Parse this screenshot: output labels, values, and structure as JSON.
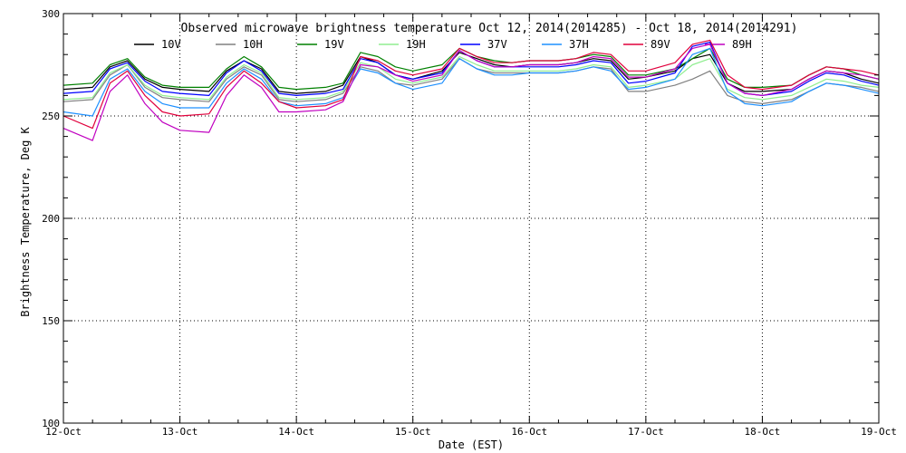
{
  "chart_data": {
    "type": "line",
    "title": "Observed microwave brightness temperature Oct 12, 2014(2014285) - Oct 18, 2014(2014291)",
    "xlabel": "Date (EST)",
    "ylabel": "Brightness Temperature, Deg K",
    "xlim": [
      0,
      7
    ],
    "ylim": [
      100,
      300
    ],
    "x_ticks": [
      0,
      1,
      2,
      3,
      4,
      5,
      6,
      7
    ],
    "x_tick_labels": [
      "12-Oct",
      "13-Oct",
      "14-Oct",
      "15-Oct",
      "16-Oct",
      "17-Oct",
      "18-Oct",
      "19-Oct"
    ],
    "y_ticks": [
      100,
      150,
      200,
      250,
      300
    ],
    "y_tick_labels": [
      "100",
      "150",
      "200",
      "250",
      "300"
    ],
    "grid": true,
    "legend_position": "top",
    "series": [
      {
        "name": "10V",
        "color": "#000000",
        "x": [
          0,
          0.25,
          0.4,
          0.55,
          0.7,
          0.85,
          1,
          1.25,
          1.4,
          1.55,
          1.7,
          1.85,
          2,
          2.25,
          2.4,
          2.55,
          2.7,
          2.85,
          3,
          3.25,
          3.4,
          3.55,
          3.7,
          3.85,
          4,
          4.25,
          4.4,
          4.55,
          4.7,
          4.85,
          5,
          5.25,
          5.4,
          5.55,
          5.7,
          5.85,
          6,
          6.25,
          6.4,
          6.55,
          6.7,
          6.85,
          7
        ],
        "values": [
          263,
          264,
          274,
          277,
          268,
          264,
          263,
          262,
          272,
          277,
          273,
          262,
          261,
          262,
          265,
          279,
          276,
          270,
          268,
          272,
          281,
          278,
          275,
          274,
          275,
          275,
          276,
          278,
          277,
          268,
          269,
          272,
          278,
          280,
          266,
          262,
          262,
          263,
          268,
          272,
          271,
          268,
          266
        ]
      },
      {
        "name": "10H",
        "color": "#808080",
        "x": [
          0,
          0.25,
          0.4,
          0.55,
          0.7,
          0.85,
          1,
          1.25,
          1.4,
          1.55,
          1.7,
          1.85,
          2,
          2.25,
          2.4,
          2.55,
          2.7,
          2.85,
          3,
          3.25,
          3.4,
          3.55,
          3.7,
          3.85,
          4,
          4.25,
          4.4,
          4.55,
          4.7,
          4.85,
          5,
          5.25,
          5.4,
          5.55,
          5.7,
          5.85,
          6,
          6.25,
          6.4,
          6.55,
          6.7,
          6.85,
          7
        ],
        "values": [
          257,
          258,
          270,
          275,
          264,
          259,
          258,
          257,
          268,
          274,
          270,
          258,
          257,
          258,
          261,
          274,
          272,
          266,
          265,
          268,
          278,
          273,
          271,
          271,
          271,
          271,
          272,
          274,
          273,
          262,
          262,
          265,
          268,
          272,
          260,
          257,
          256,
          258,
          262,
          266,
          265,
          264,
          262
        ]
      },
      {
        "name": "19V",
        "color": "#008000",
        "x": [
          0,
          0.25,
          0.4,
          0.55,
          0.7,
          0.85,
          1,
          1.25,
          1.4,
          1.55,
          1.7,
          1.85,
          2,
          2.25,
          2.4,
          2.55,
          2.7,
          2.85,
          3,
          3.25,
          3.4,
          3.55,
          3.7,
          3.85,
          4,
          4.25,
          4.4,
          4.55,
          4.7,
          4.85,
          5,
          5.25,
          5.4,
          5.55,
          5.7,
          5.85,
          6,
          6.25,
          6.4,
          6.55,
          6.7,
          6.85,
          7
        ],
        "values": [
          265,
          266,
          275,
          278,
          269,
          265,
          264,
          264,
          273,
          279,
          274,
          264,
          263,
          264,
          266,
          281,
          279,
          274,
          272,
          275,
          283,
          279,
          277,
          276,
          277,
          277,
          278,
          280,
          279,
          270,
          270,
          273,
          278,
          283,
          268,
          264,
          264,
          265,
          270,
          274,
          273,
          270,
          268
        ]
      },
      {
        "name": "19H",
        "color": "#90ee90",
        "x": [
          0,
          0.25,
          0.4,
          0.55,
          0.7,
          0.85,
          1,
          1.25,
          1.4,
          1.55,
          1.7,
          1.85,
          2,
          2.25,
          2.4,
          2.55,
          2.7,
          2.85,
          3,
          3.25,
          3.4,
          3.55,
          3.7,
          3.85,
          4,
          4.25,
          4.4,
          4.55,
          4.7,
          4.85,
          5,
          5.25,
          5.4,
          5.55,
          5.7,
          5.85,
          6,
          6.25,
          6.4,
          6.55,
          6.7,
          6.85,
          7
        ],
        "values": [
          258,
          259,
          271,
          275,
          265,
          260,
          259,
          258,
          269,
          275,
          271,
          259,
          258,
          259,
          262,
          276,
          274,
          268,
          266,
          269,
          279,
          275,
          272,
          272,
          272,
          272,
          273,
          275,
          274,
          264,
          265,
          268,
          275,
          278,
          263,
          259,
          258,
          260,
          264,
          268,
          267,
          265,
          264
        ]
      },
      {
        "name": "37V",
        "color": "#0000ff",
        "x": [
          0,
          0.25,
          0.4,
          0.55,
          0.7,
          0.85,
          1,
          1.25,
          1.4,
          1.55,
          1.7,
          1.85,
          2,
          2.25,
          2.4,
          2.55,
          2.7,
          2.85,
          3,
          3.25,
          3.4,
          3.55,
          3.7,
          3.85,
          4,
          4.25,
          4.4,
          4.55,
          4.7,
          4.85,
          5,
          5.25,
          5.4,
          5.55,
          5.7,
          5.85,
          6,
          6.25,
          6.4,
          6.55,
          6.7,
          6.85,
          7
        ],
        "values": [
          261,
          262,
          273,
          276,
          267,
          262,
          261,
          260,
          271,
          277,
          272,
          261,
          260,
          261,
          263,
          278,
          276,
          270,
          268,
          271,
          282,
          277,
          274,
          274,
          274,
          274,
          275,
          277,
          276,
          266,
          267,
          271,
          284,
          286,
          266,
          261,
          260,
          262,
          267,
          271,
          270,
          267,
          265
        ]
      },
      {
        "name": "37H",
        "color": "#1e90ff",
        "x": [
          0,
          0.25,
          0.4,
          0.55,
          0.7,
          0.85,
          1,
          1.25,
          1.4,
          1.55,
          1.7,
          1.85,
          2,
          2.25,
          2.4,
          2.55,
          2.7,
          2.85,
          3,
          3.25,
          3.4,
          3.55,
          3.7,
          3.85,
          4,
          4.25,
          4.4,
          4.55,
          4.7,
          4.85,
          5,
          5.25,
          5.4,
          5.55,
          5.7,
          5.85,
          6,
          6.25,
          6.4,
          6.55,
          6.7,
          6.85,
          7
        ],
        "values": [
          252,
          250,
          268,
          273,
          262,
          256,
          254,
          254,
          266,
          273,
          268,
          257,
          255,
          256,
          259,
          273,
          271,
          266,
          263,
          266,
          278,
          273,
          270,
          270,
          271,
          271,
          272,
          274,
          272,
          263,
          264,
          268,
          280,
          283,
          262,
          256,
          255,
          257,
          262,
          266,
          265,
          263,
          261
        ]
      },
      {
        "name": "89V",
        "color": "#e0003c",
        "x": [
          0,
          0.25,
          0.4,
          0.55,
          0.7,
          0.85,
          1,
          1.25,
          1.4,
          1.55,
          1.7,
          1.85,
          2,
          2.25,
          2.4,
          2.55,
          2.7,
          2.85,
          3,
          3.25,
          3.4,
          3.55,
          3.7,
          3.85,
          4,
          4.25,
          4.4,
          4.55,
          4.7,
          4.85,
          5,
          5.25,
          5.4,
          5.55,
          5.7,
          5.85,
          6,
          6.25,
          6.4,
          6.55,
          6.7,
          6.85,
          7
        ],
        "values": [
          250,
          244,
          266,
          272,
          260,
          252,
          250,
          251,
          264,
          272,
          266,
          257,
          254,
          255,
          258,
          279,
          277,
          272,
          270,
          273,
          283,
          279,
          276,
          276,
          277,
          277,
          278,
          281,
          280,
          272,
          272,
          276,
          285,
          287,
          270,
          264,
          263,
          265,
          270,
          274,
          273,
          272,
          270
        ]
      },
      {
        "name": "89H",
        "color": "#c000c0",
        "x": [
          0,
          0.25,
          0.4,
          0.55,
          0.7,
          0.85,
          1,
          1.25,
          1.4,
          1.55,
          1.7,
          1.85,
          2,
          2.25,
          2.4,
          2.55,
          2.7,
          2.85,
          3,
          3.25,
          3.4,
          3.55,
          3.7,
          3.85,
          4,
          4.25,
          4.4,
          4.55,
          4.7,
          4.85,
          5,
          5.25,
          5.4,
          5.55,
          5.7,
          5.85,
          6,
          6.25,
          6.4,
          6.55,
          6.7,
          6.85,
          7
        ],
        "values": [
          244,
          238,
          262,
          270,
          256,
          247,
          243,
          242,
          260,
          270,
          264,
          252,
          252,
          253,
          257,
          275,
          274,
          270,
          267,
          270,
          282,
          277,
          274,
          274,
          275,
          275,
          276,
          279,
          278,
          269,
          269,
          273,
          283,
          285,
          266,
          261,
          260,
          263,
          268,
          272,
          271,
          270,
          268
        ]
      }
    ]
  }
}
